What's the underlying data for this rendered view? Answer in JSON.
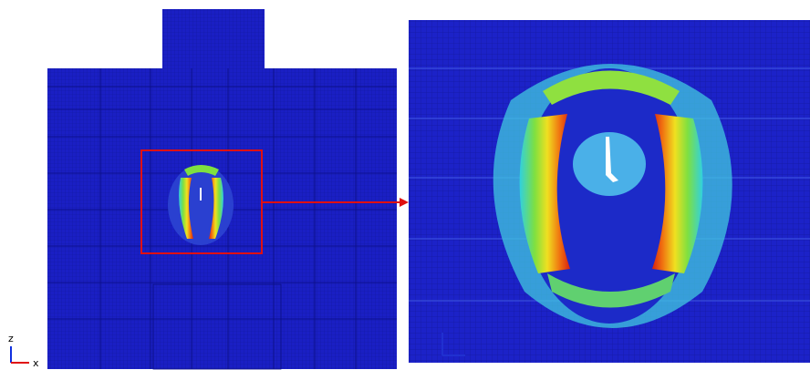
{
  "axes_triad": {
    "vertical": "z",
    "horizontal": "x"
  }
}
